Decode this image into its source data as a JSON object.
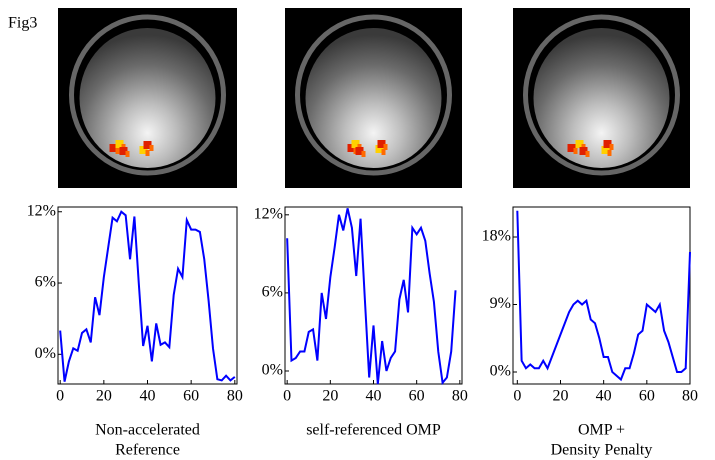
{
  "figure_label": "Fig3",
  "chart_data": [
    {
      "type": "line",
      "caption": [
        "Non-accelerated",
        "Reference"
      ],
      "x": [
        0,
        2,
        4,
        6,
        8,
        10,
        12,
        14,
        16,
        18,
        20,
        22,
        24,
        26,
        28,
        30,
        32,
        34,
        36,
        38,
        40,
        42,
        44,
        46,
        48,
        50,
        52,
        54,
        56,
        58,
        60,
        62,
        64,
        66,
        68,
        70,
        72,
        74,
        76,
        78,
        80
      ],
      "series": [
        {
          "color": "#0000ff",
          "values": [
            2.0,
            -2.3,
            -0.6,
            0.5,
            0.3,
            1.8,
            2.1,
            1.0,
            4.8,
            3.3,
            6.5,
            9.0,
            11.5,
            11.2,
            12.0,
            11.7,
            8.0,
            11.6,
            6.0,
            0.7,
            2.4,
            -0.6,
            2.6,
            0.8,
            1.0,
            0.6,
            5.0,
            7.2,
            6.5,
            11.3,
            10.5,
            10.5,
            10.3,
            8.0,
            4.5,
            0.5,
            -2.1,
            -2.2,
            -1.8,
            -2.2,
            -1.9
          ]
        }
      ],
      "xlim": [
        -1,
        81
      ],
      "ylim": [
        -2.5,
        12.4
      ],
      "xticks": [
        0,
        20,
        40,
        60,
        80
      ],
      "yticks": [
        {
          "value": 0,
          "label": "0%"
        },
        {
          "value": 6,
          "label": "6%"
        },
        {
          "value": 12,
          "label": "12%"
        }
      ]
    },
    {
      "type": "line",
      "caption": [
        "self-referenced OMP"
      ],
      "x": [
        0,
        2,
        4,
        6,
        8,
        10,
        12,
        14,
        16,
        18,
        20,
        22,
        24,
        26,
        28,
        30,
        32,
        34,
        36,
        38,
        40,
        42,
        44,
        46,
        48,
        50,
        52,
        54,
        56,
        58,
        60,
        62,
        64,
        66,
        68,
        70,
        72,
        74,
        76,
        78
      ],
      "series": [
        {
          "color": "#0000ff",
          "values": [
            10.2,
            0.8,
            1.0,
            1.5,
            1.5,
            3.0,
            3.2,
            0.8,
            6.0,
            4.0,
            7.2,
            9.5,
            12.0,
            10.8,
            12.5,
            11.0,
            7.3,
            11.7,
            5.5,
            -0.5,
            3.5,
            -1.0,
            2.3,
            0.0,
            1.0,
            1.5,
            5.5,
            7.0,
            4.5,
            11.0,
            10.5,
            11.0,
            10.0,
            7.5,
            5.3,
            1.5,
            -0.9,
            -0.5,
            1.5,
            6.2
          ]
        }
      ],
      "xlim": [
        -1,
        81
      ],
      "ylim": [
        -1.0,
        12.6
      ],
      "xticks": [
        0,
        20,
        40,
        60,
        80
      ],
      "yticks": [
        {
          "value": 0,
          "label": "0%"
        },
        {
          "value": 6,
          "label": "6%"
        },
        {
          "value": 12,
          "label": "12%"
        }
      ]
    },
    {
      "type": "line",
      "caption": [
        "OMP +",
        "Density Penalty"
      ],
      "x": [
        0,
        2,
        4,
        6,
        8,
        10,
        12,
        14,
        16,
        18,
        20,
        22,
        24,
        26,
        28,
        30,
        32,
        34,
        36,
        38,
        40,
        42,
        44,
        46,
        48,
        50,
        52,
        54,
        56,
        58,
        60,
        62,
        64,
        66,
        68,
        70,
        72,
        74,
        76,
        78,
        80
      ],
      "series": [
        {
          "color": "#0000ff",
          "values": [
            21.5,
            1.5,
            0.5,
            1.0,
            0.5,
            0.5,
            1.5,
            0.5,
            2.0,
            3.5,
            5.0,
            6.5,
            8.0,
            9.0,
            9.5,
            9.0,
            9.5,
            7.0,
            6.5,
            4.5,
            2.0,
            2.0,
            0.0,
            -0.5,
            -1.0,
            0.5,
            0.5,
            2.5,
            5.0,
            5.5,
            9.0,
            8.5,
            8.0,
            9.0,
            5.5,
            4.0,
            2.0,
            0.0,
            0.0,
            0.5,
            16.0
          ]
        }
      ],
      "xlim": [
        -2,
        80
      ],
      "ylim": [
        -1.6,
        22
      ],
      "xticks": [
        0,
        20,
        40,
        60,
        80
      ],
      "yticks": [
        {
          "value": 0,
          "label": "0%"
        },
        {
          "value": 9,
          "label": "9%"
        },
        {
          "value": 18,
          "label": "18%"
        }
      ]
    }
  ]
}
